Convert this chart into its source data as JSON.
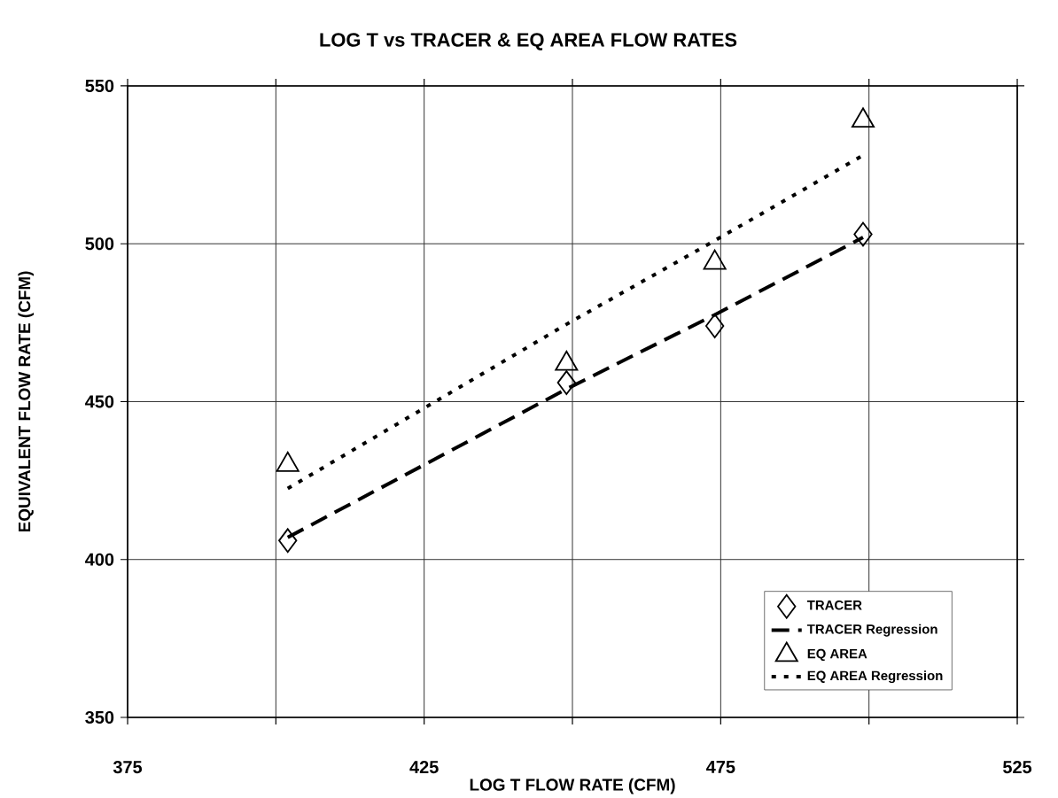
{
  "chart_data": {
    "type": "scatter",
    "title": "LOG T vs TRACER & EQ AREA FLOW RATES",
    "xlabel": "LOG T FLOW RATE (CFM)",
    "ylabel": "EQUIVALENT FLOW RATE (CFM)",
    "xlim": [
      375,
      525
    ],
    "xticks": [
      375,
      {
        "value": 400,
        "label": null
      },
      425,
      {
        "value": 450,
        "label": null
      },
      475,
      {
        "value": 500,
        "label": null
      },
      525
    ],
    "ylim": [
      350,
      550
    ],
    "yticks": [
      350,
      400,
      450,
      500,
      550
    ],
    "grid": true,
    "legend": "bottom right",
    "series": [
      {
        "name": "TRACER",
        "type": "scatter",
        "marker": "diamond",
        "color": "#000000",
        "x": [
          402,
          449,
          474,
          499
        ],
        "values": [
          406,
          456,
          474,
          503
        ]
      },
      {
        "name": "TRACER Regression",
        "type": "line",
        "marker": "none",
        "line_style": "dashed",
        "color": "#000000",
        "x": [
          402,
          449,
          474,
          499
        ],
        "values": [
          407,
          454,
          477.5,
          502
        ]
      },
      {
        "name": "EQ AREA",
        "type": "scatter",
        "marker": "triangle",
        "color": "#000000",
        "x": [
          402,
          449,
          474,
          499
        ],
        "values": [
          430,
          462,
          494,
          539
        ]
      },
      {
        "name": "EQ AREA Regression",
        "type": "line",
        "marker": "none",
        "line_style": "dotted",
        "color": "#000000",
        "x": [
          402,
          449,
          474,
          499
        ],
        "values": [
          422.5,
          474.5,
          501,
          528
        ]
      }
    ]
  }
}
